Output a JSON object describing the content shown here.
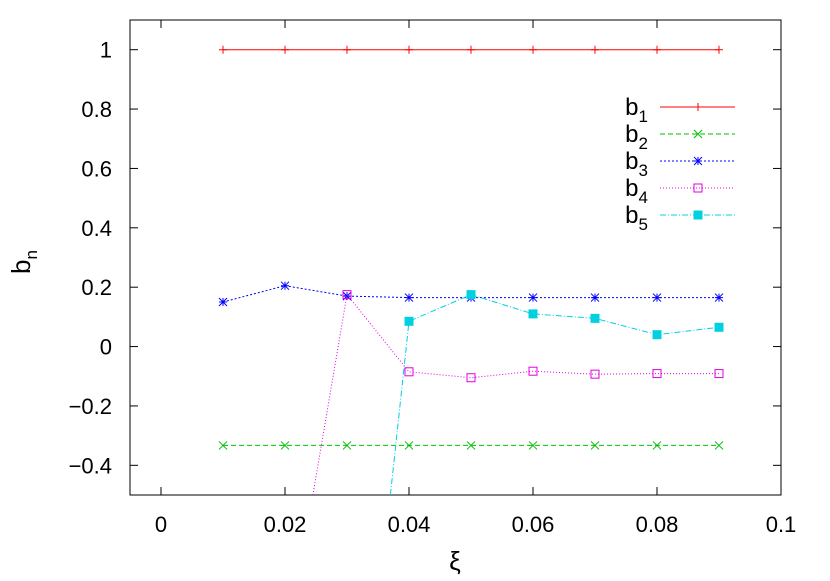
{
  "chart_data": {
    "type": "line",
    "xlabel": "ξ",
    "ylabel": "b",
    "ylabel_sub": "n",
    "xlim": [
      -0.005,
      0.1
    ],
    "ylim": [
      -0.5,
      1.1
    ],
    "xticks": [
      0,
      0.02,
      0.04,
      0.06,
      0.08,
      0.1
    ],
    "xtick_labels": [
      "0",
      "0.02",
      "0.04",
      "0.06",
      "0.08",
      "0.1"
    ],
    "yticks": [
      -0.4,
      -0.2,
      0,
      0.2,
      0.4,
      0.6,
      0.8,
      1
    ],
    "ytick_labels": [
      "−0.4",
      "−0.2",
      "0",
      "0.2",
      "0.4",
      "0.6",
      "0.8",
      "1"
    ],
    "grid": false,
    "legend_position": "top-right",
    "series": [
      {
        "name": "b",
        "sub": "1",
        "color": "#ff0000",
        "marker": "plus",
        "dash": "",
        "x": [
          0.01,
          0.02,
          0.03,
          0.04,
          0.05,
          0.06,
          0.07,
          0.08,
          0.09
        ],
        "y": [
          1,
          1,
          1,
          1,
          1,
          1,
          1,
          1,
          1
        ]
      },
      {
        "name": "b",
        "sub": "2",
        "color": "#00c000",
        "marker": "cross",
        "dash": "5,3",
        "x": [
          0.01,
          0.02,
          0.03,
          0.04,
          0.05,
          0.06,
          0.07,
          0.08,
          0.09
        ],
        "y": [
          -0.333,
          -0.333,
          -0.333,
          -0.333,
          -0.333,
          -0.333,
          -0.333,
          -0.333,
          -0.333
        ]
      },
      {
        "name": "b",
        "sub": "3",
        "color": "#0000ff",
        "marker": "asterisk",
        "dash": "2,2",
        "x": [
          0.01,
          0.02,
          0.03,
          0.04,
          0.05,
          0.06,
          0.07,
          0.08,
          0.09
        ],
        "y": [
          0.15,
          0.205,
          0.17,
          0.165,
          0.165,
          0.165,
          0.165,
          0.165,
          0.165
        ]
      },
      {
        "name": "b",
        "sub": "4",
        "color": "#e000e0",
        "marker": "open-square",
        "dash": "1,2",
        "x": [
          0.0245,
          0.03,
          0.04,
          0.05,
          0.06,
          0.07,
          0.08,
          0.09
        ],
        "y": [
          -0.5,
          0.175,
          -0.085,
          -0.105,
          -0.083,
          -0.093,
          -0.091,
          -0.091
        ]
      },
      {
        "name": "b",
        "sub": "5",
        "color": "#00d0e0",
        "marker": "filled-square",
        "dash": "6,2,1,2",
        "x": [
          0.037,
          0.04,
          0.05,
          0.06,
          0.07,
          0.08,
          0.09
        ],
        "y": [
          -0.5,
          0.085,
          0.175,
          0.11,
          0.095,
          0.04,
          0.065
        ]
      }
    ]
  }
}
